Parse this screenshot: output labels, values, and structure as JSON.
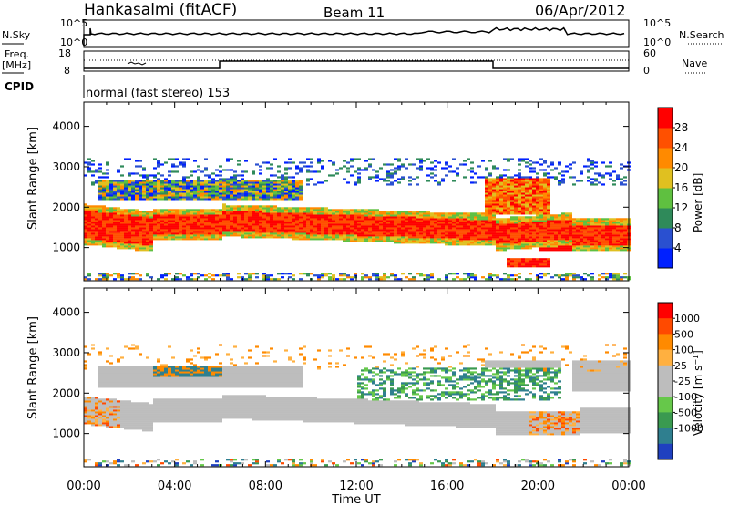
{
  "header": {
    "station": "Hankasalmi (fitACF)",
    "beam": "Beam 11",
    "date": "06/Apr/2012"
  },
  "panels": {
    "nsky_label": "N.Sky",
    "nsearch_label": "N.Search",
    "freq_label_1": "Freq.",
    "freq_label_2": "[MHz]",
    "nave_label": "Nave",
    "cpid_label": "CPID",
    "cpid_text": "normal (fast stereo) 153",
    "nsky_ticks": [
      "10^5",
      "10^0"
    ],
    "nsearch_ticks": [
      "10^5",
      "10^0"
    ],
    "freq_ticks": [
      "18",
      "8"
    ],
    "nave_ticks": [
      "60",
      "0"
    ]
  },
  "chart_data": [
    {
      "type": "heatmap",
      "quantity": "Power",
      "ylabel": "Slant Range [km]",
      "xlabel": "Time UT",
      "colorbar_label": "Power [dB]",
      "x_ticks": [
        "00:00",
        "04:00",
        "08:00",
        "12:00",
        "16:00",
        "20:00",
        "00:00"
      ],
      "x_range_hours": [
        0,
        24
      ],
      "y_ticks": [
        1000,
        2000,
        3000,
        4000
      ],
      "ylim": [
        180,
        4600
      ],
      "colorbar_ticks": [
        4,
        8,
        12,
        16,
        20,
        24,
        28
      ],
      "colorbar_range": [
        0,
        32
      ],
      "colors": [
        "#0020ff",
        "#2a50d0",
        "#2f8a5a",
        "#5fc040",
        "#e0c020",
        "#ff8a00",
        "#ff5000",
        "#ff0000"
      ]
    },
    {
      "type": "heatmap",
      "quantity": "Velocity",
      "ylabel": "Slant Range [km]",
      "xlabel": "Time UT",
      "colorbar_label": "Velocity [m s^-1]",
      "x_ticks": [
        "00:00",
        "04:00",
        "08:00",
        "12:00",
        "16:00",
        "20:00",
        "00:00"
      ],
      "x_range_hours": [
        0,
        24
      ],
      "y_ticks": [
        1000,
        2000,
        3000,
        4000
      ],
      "ylim": [
        180,
        4600
      ],
      "colorbar_ticks": [
        "1000",
        "500",
        "100",
        "25",
        "-25",
        "-100",
        "-500",
        "-1000"
      ],
      "colors": [
        "#1f40c0",
        "#2f7f8f",
        "#3a9a50",
        "#66c84a",
        "#bdbdbd",
        "#bdbdbd",
        "#ffb040",
        "#ff8a00",
        "#ff4a00",
        "#ff0000"
      ]
    }
  ]
}
